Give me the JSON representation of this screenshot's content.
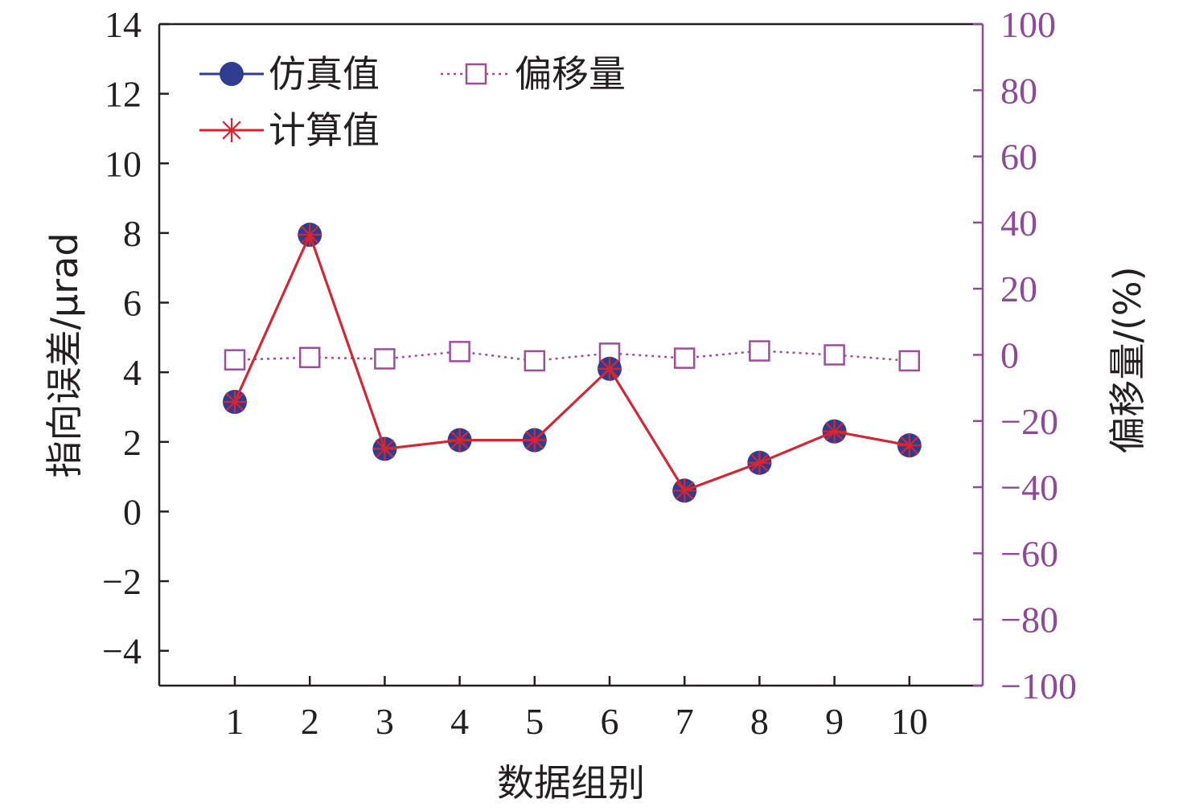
{
  "chart_data": {
    "type": "line",
    "x": [
      1,
      2,
      3,
      4,
      5,
      6,
      7,
      8,
      9,
      10
    ],
    "xlabel": "数据组别",
    "ylabel": "指向误差/μrad",
    "y2label": "偏移量/(%)",
    "ylim": [
      -5,
      14
    ],
    "y2lim": [
      -100,
      100
    ],
    "yticks": [
      -4,
      -2,
      0,
      2,
      4,
      6,
      8,
      10,
      12,
      14
    ],
    "y2ticks": [
      -100,
      -80,
      -60,
      -40,
      -20,
      0,
      20,
      40,
      60,
      80,
      100
    ],
    "xticks": [
      1,
      2,
      3,
      4,
      5,
      6,
      7,
      8,
      9,
      10
    ],
    "grid": false,
    "legend_position": "top-left",
    "series": [
      {
        "name": "仿真值",
        "axis": "left",
        "marker": "filled-circle",
        "line": "solid",
        "color": "#2e3d8f",
        "values": [
          3.15,
          7.95,
          1.8,
          2.05,
          2.05,
          4.1,
          0.6,
          1.4,
          2.3,
          1.9
        ]
      },
      {
        "name": "计算值",
        "axis": "left",
        "marker": "asterisk",
        "line": "solid",
        "color": "#d7262f",
        "values": [
          3.15,
          7.95,
          1.8,
          2.05,
          2.05,
          4.1,
          0.6,
          1.4,
          2.3,
          1.9
        ]
      },
      {
        "name": "偏移量",
        "axis": "right",
        "marker": "open-square",
        "line": "dotted",
        "color": "#9b4f9a",
        "values": [
          -1.5,
          -0.8,
          -1.2,
          1.0,
          -1.8,
          0.5,
          -1.0,
          1.2,
          0.0,
          -1.8
        ]
      }
    ]
  },
  "colors": {
    "left_axis": "#231f20",
    "right_axis": "#8d4a97"
  }
}
